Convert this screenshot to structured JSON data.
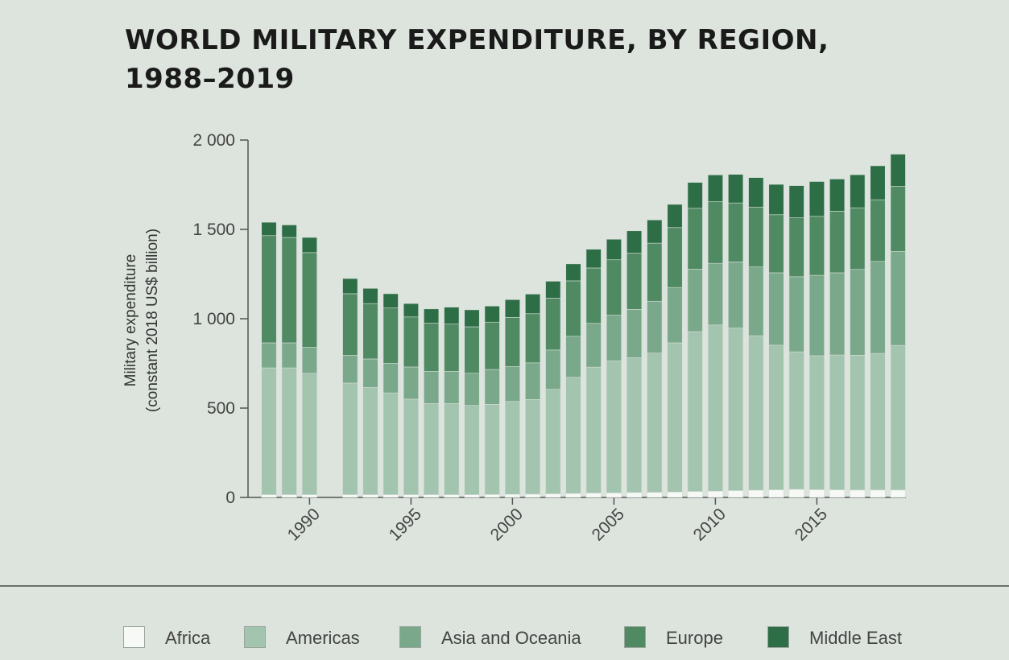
{
  "title_lines": [
    "WORLD MILITARY EXPENDITURE, BY REGION,",
    "1988–2019"
  ],
  "chart_data": {
    "type": "bar",
    "stacked": true,
    "title": "WORLD MILITARY EXPENDITURE, BY REGION, 1988–2019",
    "ylabel_lines": [
      "Military expenditure",
      "(constant 2018 US$ billion)"
    ],
    "ylim": [
      0,
      2000
    ],
    "yticks": [
      0,
      500,
      1000,
      1500,
      2000
    ],
    "ytick_labels": [
      "0",
      "500",
      "1 000",
      "1 500",
      "2 000"
    ],
    "xticks": [
      1990,
      1995,
      2000,
      2005,
      2010,
      2015
    ],
    "xtick_labels": [
      "1990",
      "1995",
      "2000",
      "2005",
      "2010",
      "2015"
    ],
    "categories": [
      1988,
      1989,
      1990,
      1992,
      1993,
      1994,
      1995,
      1996,
      1997,
      1998,
      1999,
      2000,
      2001,
      2002,
      2003,
      2004,
      2005,
      2006,
      2007,
      2008,
      2009,
      2010,
      2011,
      2012,
      2013,
      2014,
      2015,
      2016,
      2017,
      2018,
      2019
    ],
    "series": [
      {
        "name": "Africa",
        "color": "#f7f9f7",
        "values": [
          15,
          15,
          15,
          15,
          15,
          15,
          15,
          15,
          15,
          15,
          16,
          17,
          18,
          20,
          22,
          24,
          25,
          27,
          28,
          30,
          33,
          35,
          38,
          40,
          42,
          45,
          43,
          42,
          41,
          41,
          41
        ]
      },
      {
        "name": "Americas",
        "color": "#a3c4ae",
        "values": [
          710,
          710,
          680,
          625,
          600,
          570,
          535,
          510,
          510,
          500,
          505,
          520,
          530,
          585,
          650,
          705,
          740,
          755,
          780,
          835,
          895,
          930,
          910,
          865,
          810,
          770,
          750,
          755,
          755,
          765,
          810
        ]
      },
      {
        "name": "Asia and Oceania",
        "color": "#7aa88a",
        "values": [
          140,
          140,
          145,
          155,
          160,
          165,
          180,
          180,
          180,
          180,
          195,
          195,
          205,
          220,
          230,
          245,
          255,
          270,
          290,
          310,
          350,
          345,
          370,
          385,
          405,
          420,
          450,
          460,
          480,
          515,
          525
        ]
      },
      {
        "name": "Europe",
        "color": "#4f8a63",
        "values": [
          600,
          590,
          530,
          345,
          310,
          310,
          280,
          270,
          265,
          260,
          265,
          275,
          275,
          290,
          310,
          310,
          310,
          315,
          325,
          335,
          340,
          345,
          330,
          335,
          325,
          330,
          330,
          345,
          345,
          345,
          365
        ]
      },
      {
        "name": "Middle East",
        "color": "#2e6e46",
        "values": [
          75,
          70,
          85,
          85,
          85,
          80,
          75,
          80,
          95,
          95,
          90,
          100,
          110,
          95,
          95,
          105,
          115,
          125,
          130,
          130,
          145,
          150,
          160,
          165,
          170,
          180,
          195,
          180,
          185,
          190,
          180
        ]
      }
    ]
  },
  "legend": [
    {
      "label": "Africa",
      "color": "#f7f9f7"
    },
    {
      "label": "Americas",
      "color": "#a3c4ae"
    },
    {
      "label": "Asia and Oceania",
      "color": "#7aa88a"
    },
    {
      "label": "Europe",
      "color": "#4f8a63"
    },
    {
      "label": "Middle East",
      "color": "#2e6e46"
    }
  ]
}
